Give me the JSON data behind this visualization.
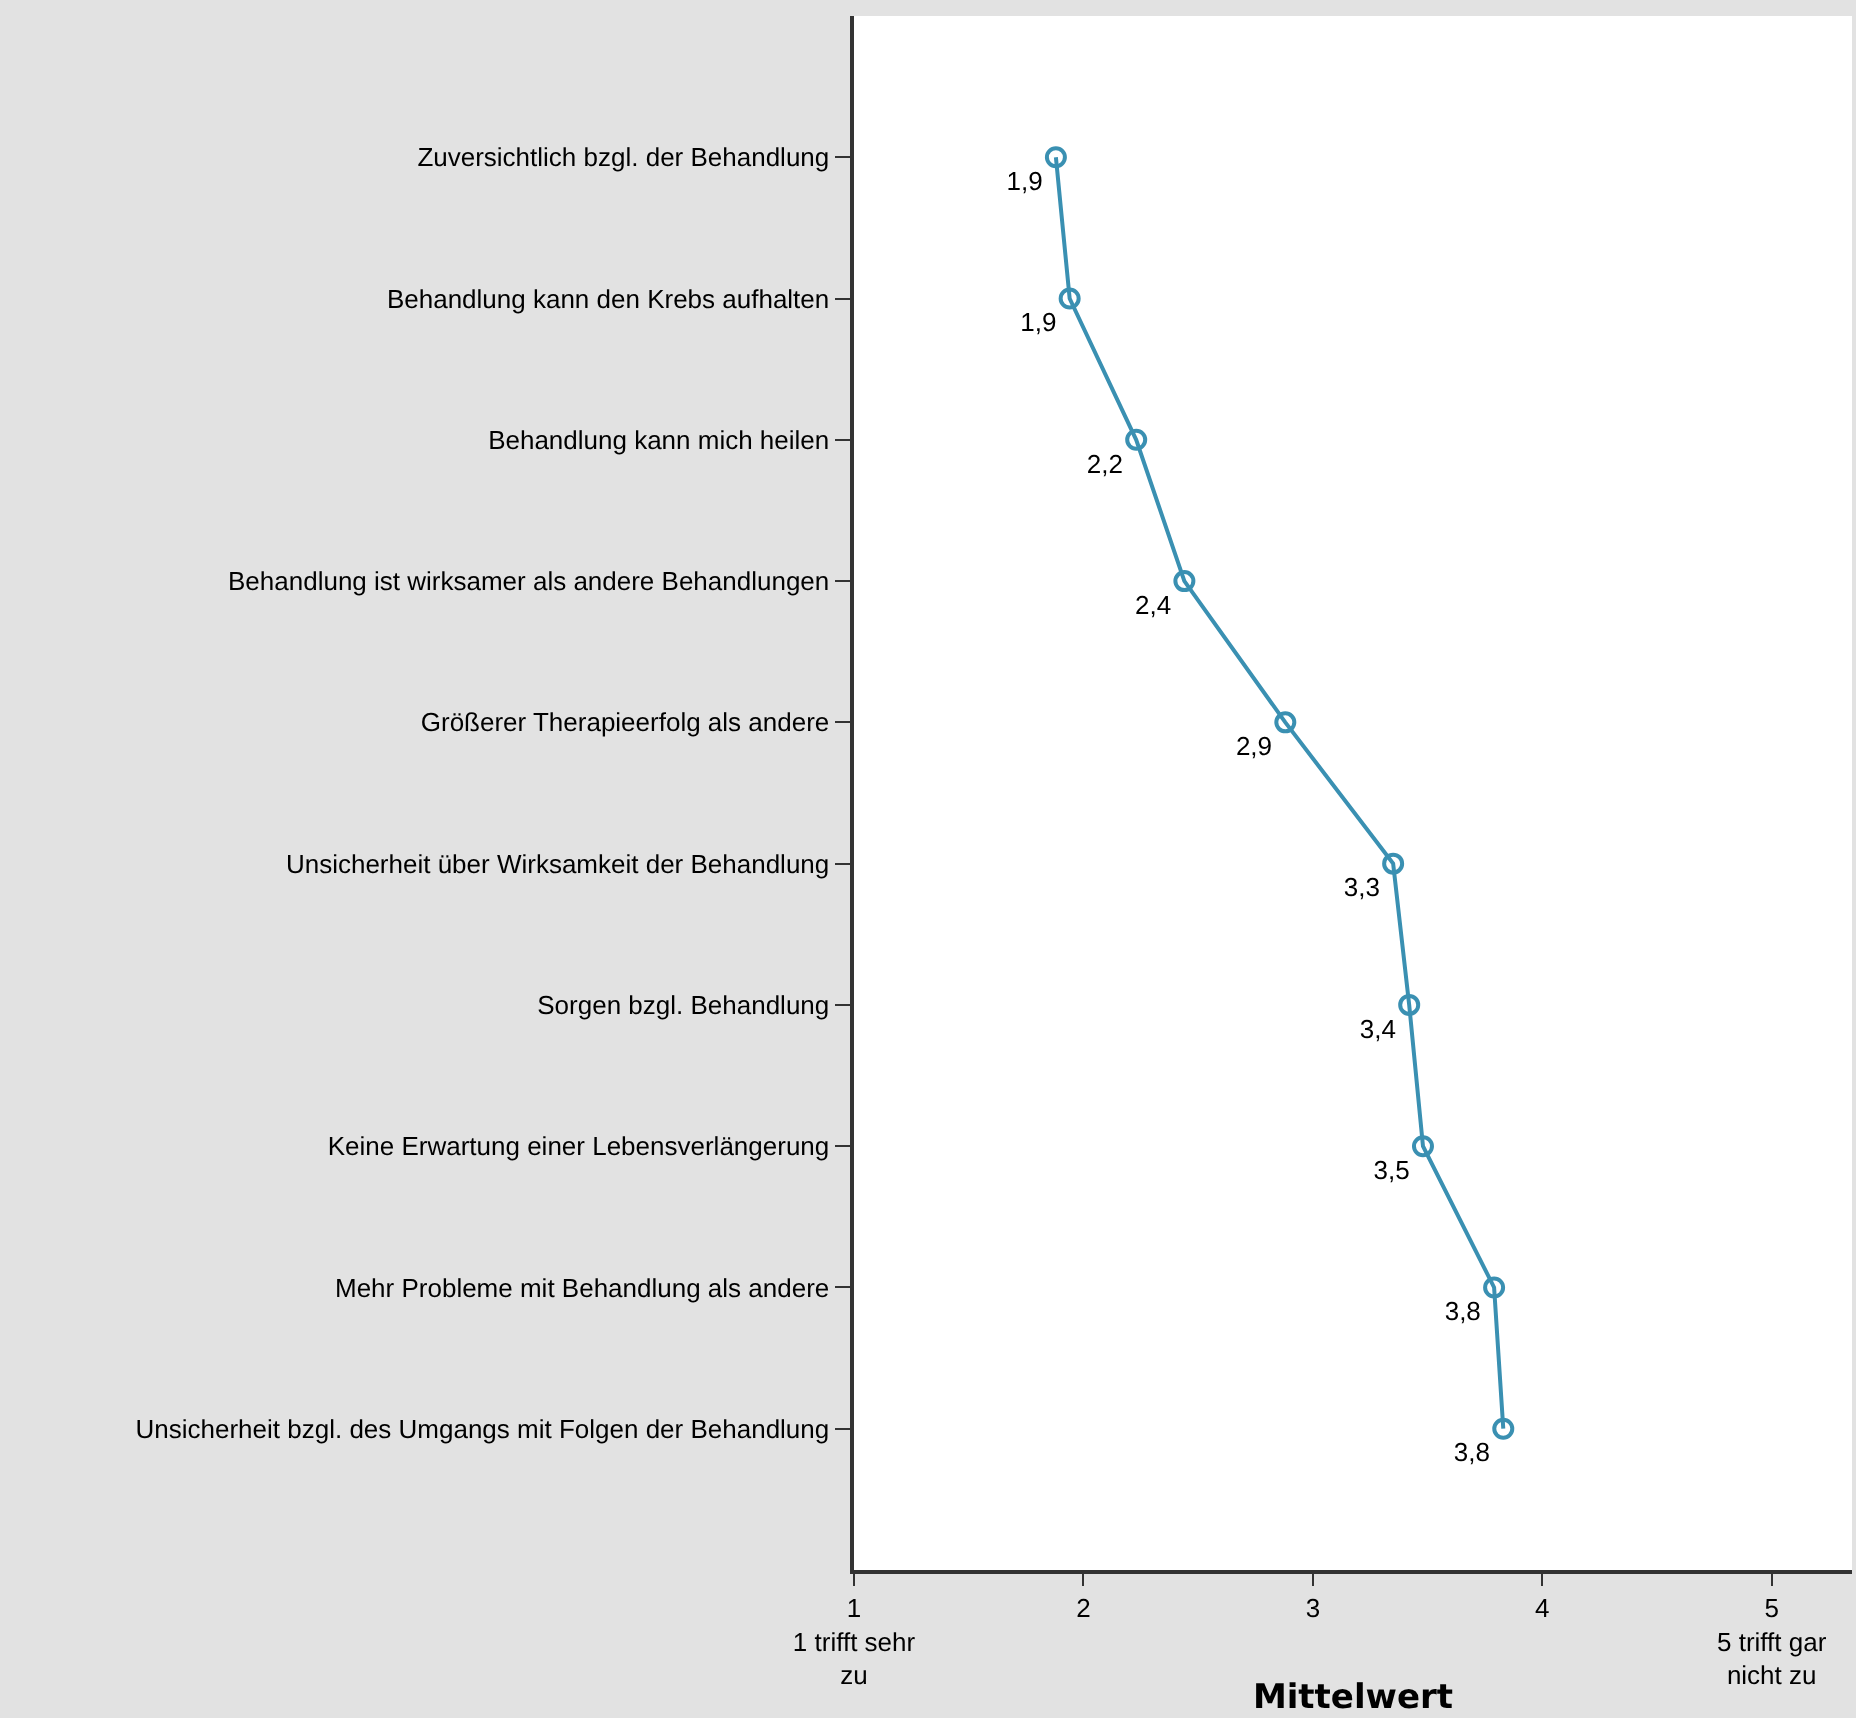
{
  "chart_data": {
    "type": "line",
    "orientation": "horizontal",
    "categories": [
      "Zuversichtlich bzgl. der Behandlung",
      "Behandlung kann den Krebs aufhalten",
      "Behandlung kann mich heilen",
      "Behandlung ist wirksamer als andere Behandlungen",
      "Größerer Therapieerfolg als andere",
      "Unsicherheit über Wirksamkeit der Behandlung",
      "Sorgen bzgl. Behandlung",
      "Keine Erwartung einer Lebensverlängerung",
      "Mehr Probleme mit Behandlung als andere",
      "Unsicherheit bzgl. des Umgangs mit Folgen der Behandlung"
    ],
    "series": [
      {
        "color": "#3a90b2",
        "values": [
          1.88,
          1.94,
          2.23,
          2.44,
          2.88,
          3.35,
          3.42,
          3.48,
          3.79,
          3.83
        ],
        "value_labels": [
          "1,9",
          "1,9",
          "2,2",
          "2,4",
          "2,9",
          "3,3",
          "3,4",
          "3,5",
          "3,8",
          "3,8"
        ]
      }
    ],
    "xlabel": "Mittelwert",
    "xlim": [
      1,
      5.35
    ],
    "xticks": [
      {
        "value": 1,
        "label": "1\n1 trifft sehr\nzu"
      },
      2,
      3,
      4,
      {
        "value": 5,
        "label": "5\n5 trifft gar\nnicht zu"
      }
    ],
    "marker": "circle",
    "line_style": "solid",
    "legend": false
  }
}
